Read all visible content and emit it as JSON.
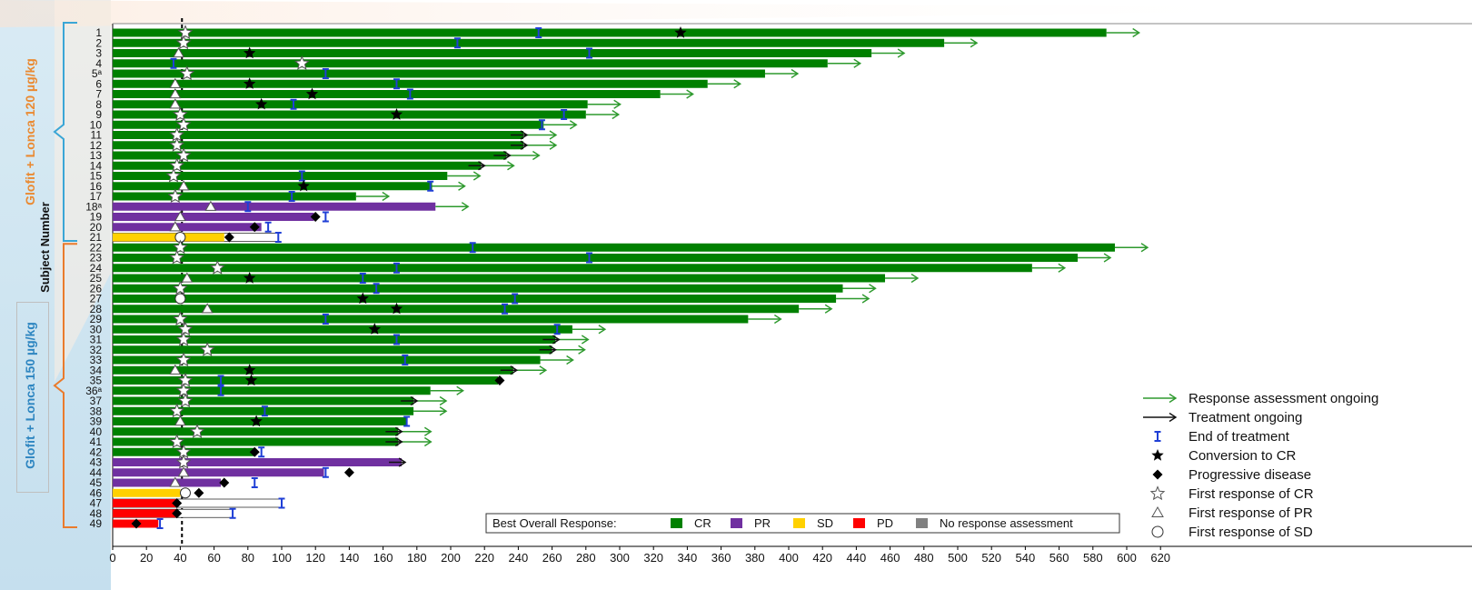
{
  "chart_data": {
    "type": "bar",
    "orientation": "horizontal",
    "x_ticks": [
      0,
      20,
      40,
      60,
      80,
      100,
      120,
      140,
      160,
      180,
      200,
      220,
      240,
      260,
      280,
      300,
      320,
      340,
      360,
      380,
      400,
      420,
      440,
      460,
      480,
      500,
      520,
      540,
      560,
      580,
      600,
      620
    ],
    "xlim": [
      0,
      620
    ],
    "reference_line_x": 41,
    "y_axis_label": "Subject Number",
    "groups": [
      {
        "label": "Glofit + Lonca 120 µg/kg",
        "subjects": "1-21",
        "color": "#ea8a32"
      },
      {
        "label": "Glofit + Lonca 150 µg/kg",
        "subjects": "22-49",
        "color": "#2e86c1"
      }
    ],
    "response_colors": {
      "CR": "#008000",
      "PR": "#7030a0",
      "SD": "#ffd100",
      "PD": "#ff0000",
      "NA": "#808080"
    },
    "subjects": [
      {
        "label": "1",
        "value": 588,
        "response": "CR",
        "eot": 252,
        "conv": 336,
        "first": "star",
        "first_x": 43,
        "ongoing": "response"
      },
      {
        "label": "2",
        "value": 492,
        "response": "CR",
        "eot": 204,
        "first": "star",
        "first_x": 42,
        "ongoing": "response"
      },
      {
        "label": "3",
        "value": 449,
        "response": "CR",
        "eot": 282,
        "conv": 81,
        "first": "tri",
        "first_x": 39,
        "ongoing": "response"
      },
      {
        "label": "4",
        "value": 423,
        "response": "CR",
        "eot": 36,
        "first": "star",
        "first_x": 112,
        "ongoing": "response"
      },
      {
        "label": "5ᵃ",
        "value": 386,
        "response": "CR",
        "eot": 126,
        "first": "star",
        "first_x": 44,
        "ongoing": "response"
      },
      {
        "label": "6",
        "value": 352,
        "response": "CR",
        "eot": 168,
        "conv": 81,
        "first": "tri",
        "first_x": 37,
        "ongoing": "response"
      },
      {
        "label": "7",
        "value": 324,
        "response": "CR",
        "eot": 176,
        "conv": 118,
        "first": "tri",
        "first_x": 37,
        "ongoing": "response"
      },
      {
        "label": "8",
        "value": 281,
        "response": "CR",
        "eot": 107,
        "conv": 88,
        "first": "tri",
        "first_x": 37,
        "ongoing": "response"
      },
      {
        "label": "9",
        "value": 280,
        "response": "CR",
        "eot": 267,
        "conv": 168,
        "first": "star",
        "first_x": 40,
        "ongoing": "response"
      },
      {
        "label": "10",
        "value": 255,
        "response": "CR",
        "eot": 254,
        "first": "star",
        "first_x": 42,
        "ongoing": "response"
      },
      {
        "label": "11",
        "value": 243,
        "response": "CR",
        "first": "star",
        "first_x": 38,
        "ongoing": "response",
        "treatment_arrow": true
      },
      {
        "label": "12",
        "value": 243,
        "response": "CR",
        "first": "star",
        "first_x": 38,
        "ongoing": "response",
        "treatment_arrow": true
      },
      {
        "label": "13",
        "value": 233,
        "response": "CR",
        "first": "star",
        "first_x": 42,
        "ongoing": "response",
        "treatment_arrow": true
      },
      {
        "label": "14",
        "value": 218,
        "response": "CR",
        "first": "star",
        "first_x": 38,
        "ongoing": "response",
        "treatment_arrow": true
      },
      {
        "label": "15",
        "value": 198,
        "response": "CR",
        "eot": 112,
        "first": "star",
        "first_x": 36,
        "ongoing": "response"
      },
      {
        "label": "16",
        "value": 189,
        "response": "CR",
        "eot": 188,
        "conv": 113,
        "first": "tri",
        "first_x": 42,
        "ongoing": "response"
      },
      {
        "label": "17",
        "value": 144,
        "response": "CR",
        "eot": 106,
        "first": "star",
        "first_x": 37,
        "ongoing": "response"
      },
      {
        "label": "18ᵃ",
        "value": 191,
        "response": "PR",
        "eot": 80,
        "first": "tri",
        "first_x": 58,
        "ongoing": "response"
      },
      {
        "label": "19",
        "value": 119,
        "response": "PR",
        "eot": 126,
        "pd": 120,
        "first": "tri",
        "first_x": 40
      },
      {
        "label": "20",
        "value": 88,
        "response": "PR",
        "eot": 92,
        "pd": 84,
        "first": "tri",
        "first_x": 37
      },
      {
        "label": "21",
        "value": 66,
        "response": "SD",
        "eot": 98,
        "pd": 69,
        "first": "circ",
        "first_x": 40,
        "extend": 98
      },
      {
        "label": "22",
        "value": 593,
        "response": "CR",
        "eot": 213,
        "first": "star",
        "first_x": 40,
        "ongoing": "response"
      },
      {
        "label": "23",
        "value": 571,
        "response": "CR",
        "eot": 282,
        "first": "star",
        "first_x": 38,
        "ongoing": "response"
      },
      {
        "label": "24",
        "value": 544,
        "response": "CR",
        "eot": 168,
        "first": "star",
        "first_x": 62,
        "ongoing": "response"
      },
      {
        "label": "25",
        "value": 457,
        "response": "CR",
        "eot": 148,
        "conv": 81,
        "first": "tri",
        "first_x": 44,
        "ongoing": "response"
      },
      {
        "label": "26",
        "value": 432,
        "response": "CR",
        "eot": 156,
        "first": "star",
        "first_x": 40,
        "ongoing": "response"
      },
      {
        "label": "27",
        "value": 428,
        "response": "CR",
        "eot": 238,
        "conv": 148,
        "first": "circ",
        "first_x": 40,
        "ongoing": "response"
      },
      {
        "label": "28",
        "value": 406,
        "response": "CR",
        "eot": 232,
        "conv": 168,
        "first": "tri",
        "first_x": 56,
        "ongoing": "response"
      },
      {
        "label": "29",
        "value": 376,
        "response": "CR",
        "eot": 126,
        "first": "star",
        "first_x": 40,
        "ongoing": "response"
      },
      {
        "label": "30",
        "value": 272,
        "response": "CR",
        "eot": 263,
        "conv": 155,
        "first": "star",
        "first_x": 43,
        "ongoing": "response"
      },
      {
        "label": "31",
        "value": 262,
        "response": "CR",
        "eot": 168,
        "first": "star",
        "first_x": 42,
        "ongoing": "response",
        "treatment_arrow": true
      },
      {
        "label": "32",
        "value": 260,
        "response": "CR",
        "first": "star",
        "first_x": 56,
        "ongoing": "response",
        "treatment_arrow": true
      },
      {
        "label": "33",
        "value": 253,
        "response": "CR",
        "eot": 173,
        "first": "star",
        "first_x": 42,
        "ongoing": "response"
      },
      {
        "label": "34",
        "value": 237,
        "response": "CR",
        "conv": 81,
        "first": "tri",
        "first_x": 37,
        "ongoing": "response",
        "treatment_arrow": true
      },
      {
        "label": "35",
        "value": 228,
        "response": "CR",
        "eot": 64,
        "conv": 82,
        "pd": 229,
        "first": "star",
        "first_x": 43
      },
      {
        "label": "36ᵃ",
        "value": 188,
        "response": "CR",
        "eot": 64,
        "first": "star",
        "first_x": 42,
        "ongoing": "response"
      },
      {
        "label": "37",
        "value": 178,
        "response": "CR",
        "first": "star",
        "first_x": 43,
        "ongoing": "response",
        "treatment_arrow": true
      },
      {
        "label": "38",
        "value": 178,
        "response": "CR",
        "eot": 90,
        "first": "star",
        "first_x": 38,
        "ongoing": "response"
      },
      {
        "label": "39",
        "value": 174,
        "response": "CR",
        "eot": 174,
        "conv": 85,
        "first": "tri",
        "first_x": 40
      },
      {
        "label": "40",
        "value": 169,
        "response": "CR",
        "first": "star",
        "first_x": 50,
        "ongoing": "response",
        "treatment_arrow": true
      },
      {
        "label": "41",
        "value": 169,
        "response": "CR",
        "first": "star",
        "first_x": 38,
        "ongoing": "response",
        "treatment_arrow": true
      },
      {
        "label": "42",
        "value": 84,
        "response": "CR",
        "eot": 88,
        "pd": 84,
        "first": "star",
        "first_x": 42
      },
      {
        "label": "43",
        "value": 171,
        "response": "PR",
        "first": "star",
        "first_x": 42,
        "treatment_arrow": true
      },
      {
        "label": "44",
        "value": 125,
        "response": "PR",
        "eot": 126,
        "pd": 140,
        "first": "tri",
        "first_x": 42
      },
      {
        "label": "45",
        "value": 64,
        "response": "PR",
        "eot": 84,
        "pd": 66,
        "first": "tri",
        "first_x": 37
      },
      {
        "label": "46",
        "value": 40,
        "response": "SD",
        "pd": 51,
        "first": "circ",
        "first_x": 43
      },
      {
        "label": "47",
        "value": 38,
        "response": "PD",
        "eot": 100,
        "pd": 38,
        "extend": 100
      },
      {
        "label": "48",
        "value": 38,
        "response": "PD",
        "eot": 71,
        "pd": 38,
        "extend": 71
      },
      {
        "label": "49",
        "value": 27,
        "response": "PD",
        "eot": 28,
        "pd": 14
      }
    ],
    "legend": {
      "best_response_title": "Best Overall Response:",
      "best_response_items": [
        "CR",
        "PR",
        "SD",
        "PD",
        "No response assessment"
      ],
      "markers": [
        "Response assessment ongoing",
        "Treatment ongoing",
        "End of treatment",
        "Conversion to CR",
        "Progressive disease",
        "First response of CR",
        "First response of PR",
        "First response of SD"
      ]
    }
  }
}
